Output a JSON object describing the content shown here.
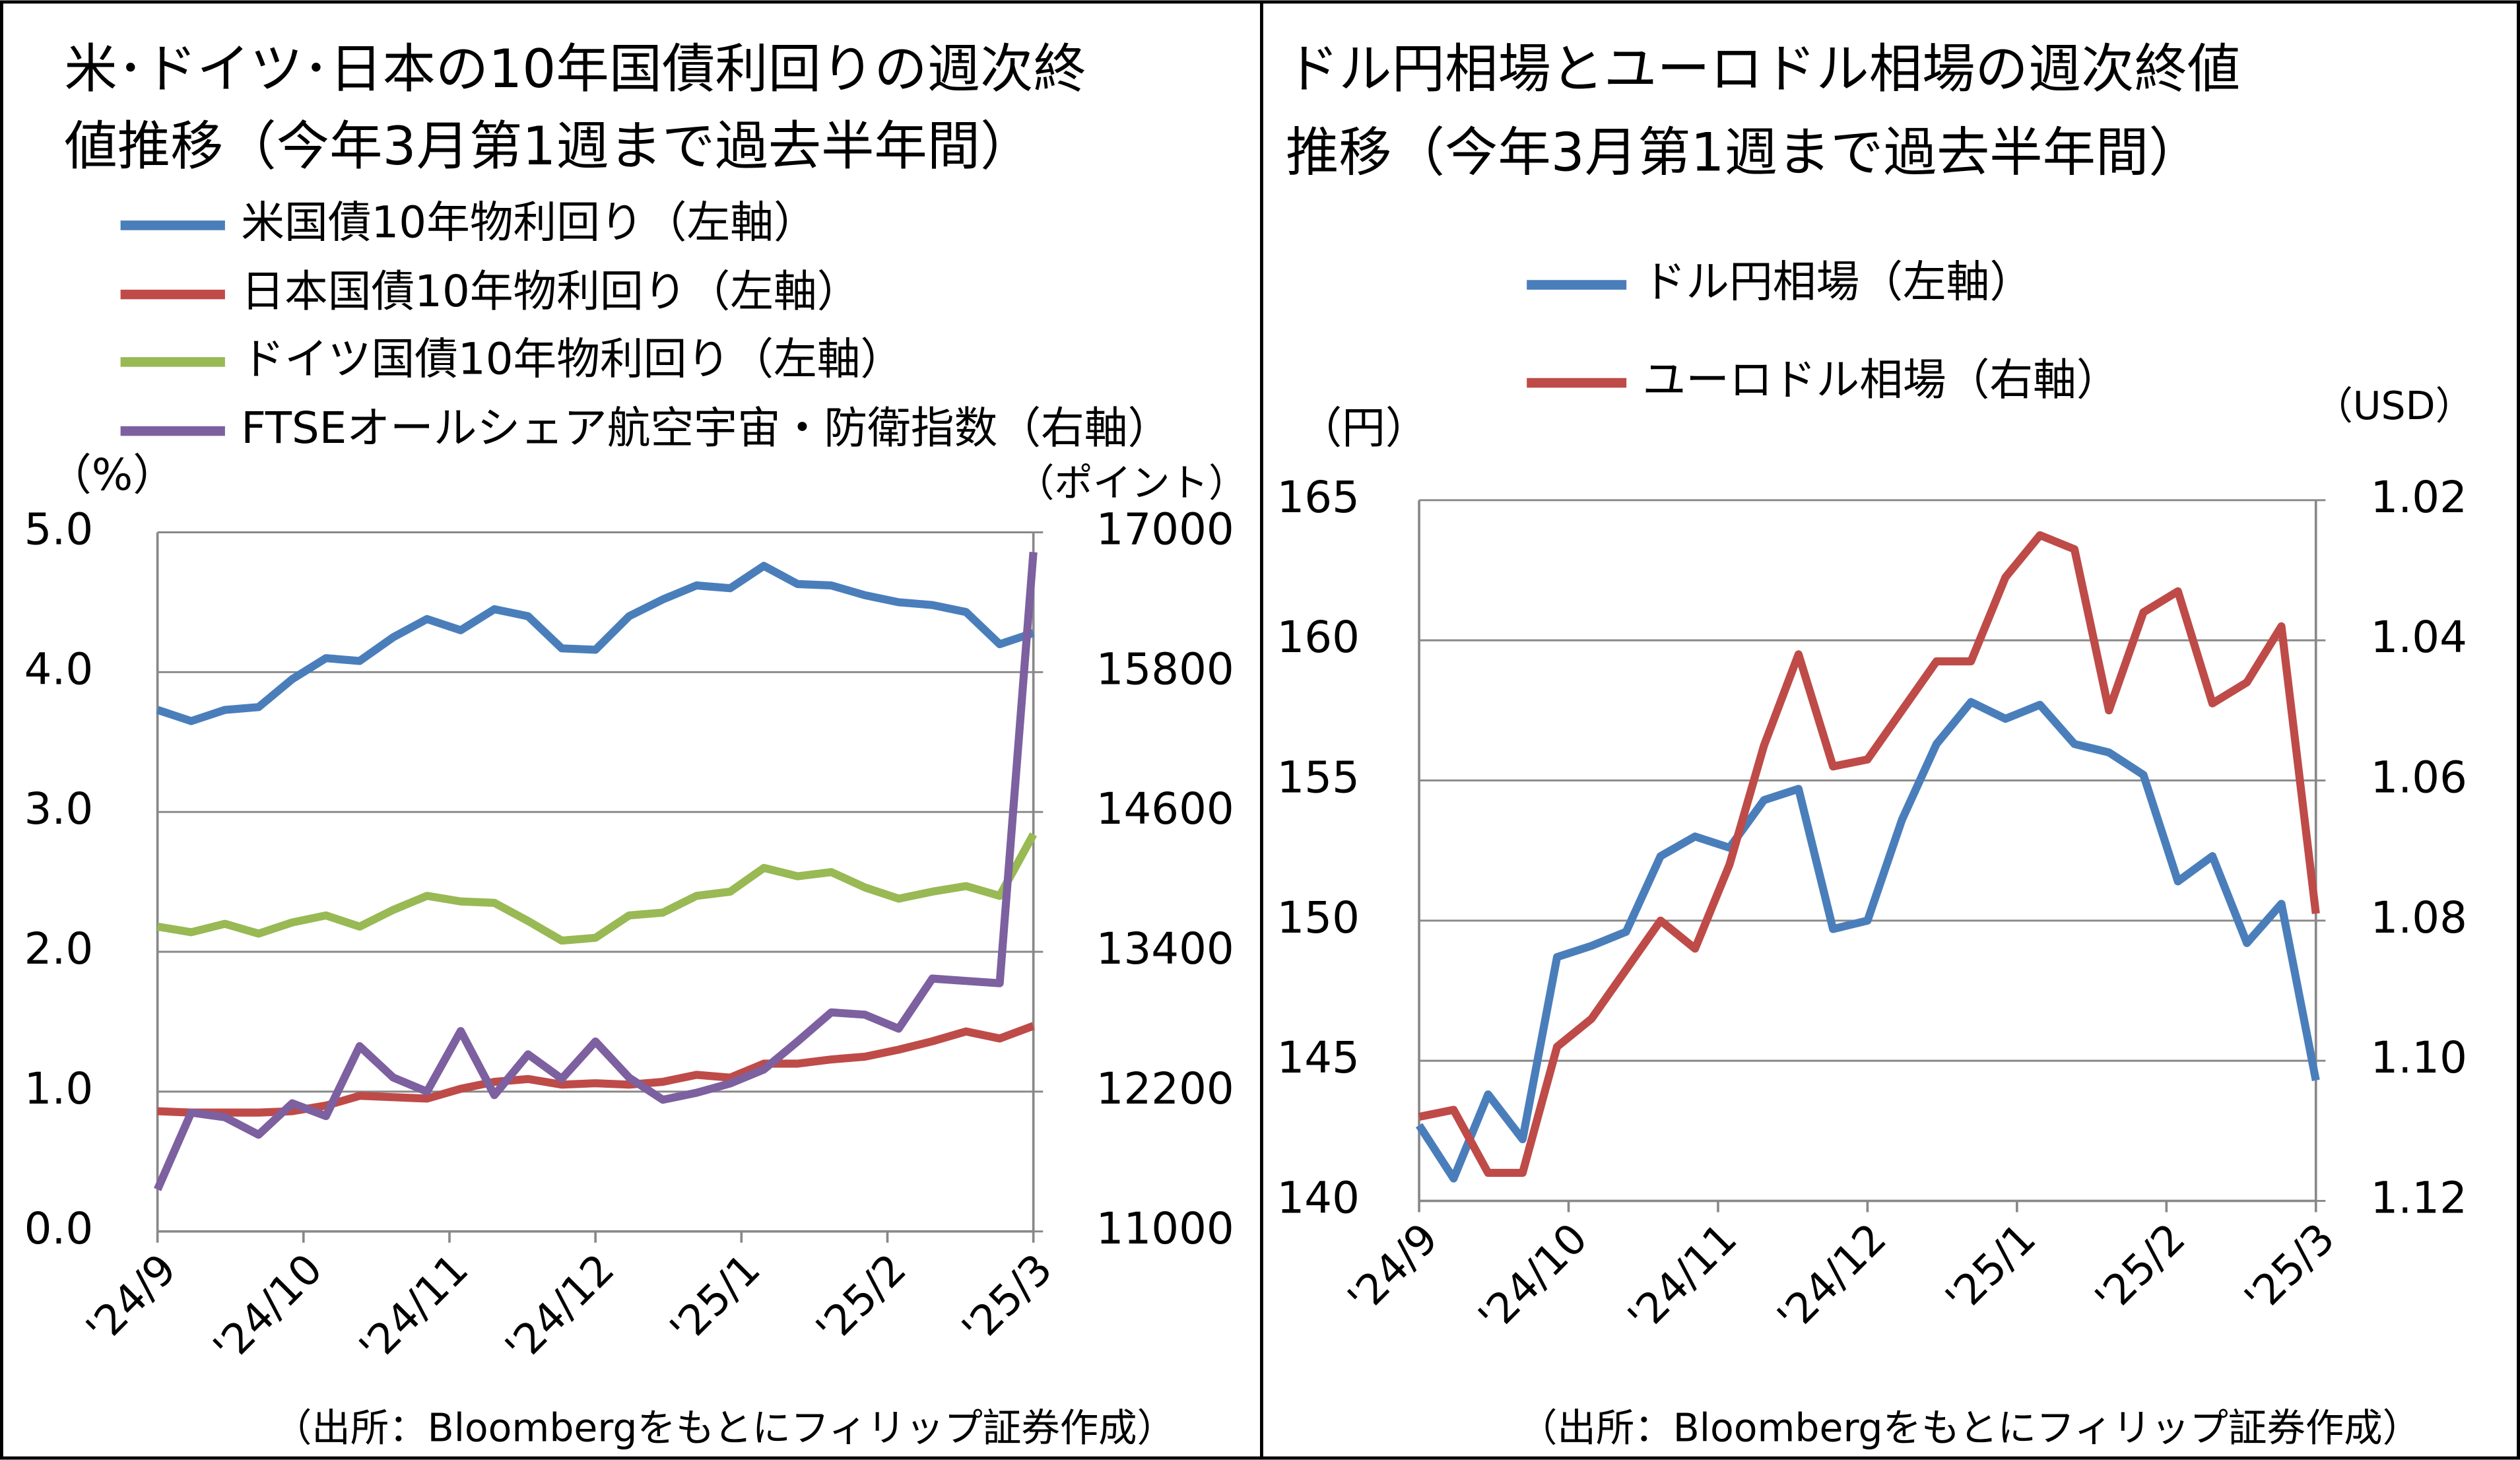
{
  "chart_data": [
    {
      "type": "line",
      "title": [
        "米･ドイツ･日本の10年国債利回りの週次終",
        "値推移（今年3月第1週まで過去半年間）"
      ],
      "y_unit": "（%）",
      "y2_unit": "（ポイント）",
      "source": "（出所：Bloombergをもとにフィリップ証券作成）",
      "x_labels": [
        "'24/9",
        "'24/10",
        "'24/11",
        "'24/12",
        "'25/1",
        "'25/2",
        "'25/3"
      ],
      "ylim": [
        0,
        5
      ],
      "yticks": [
        {
          "value": 0,
          "label": "0.0"
        },
        {
          "value": 1,
          "label": "1.0"
        },
        {
          "value": 2,
          "label": "2.0"
        },
        {
          "value": 3,
          "label": "3.0"
        },
        {
          "value": 4,
          "label": "4.0"
        },
        {
          "value": 5,
          "label": "5.0"
        }
      ],
      "y2lim": [
        11000,
        17000
      ],
      "y2ticks": [
        11000,
        12200,
        13400,
        14600,
        15800,
        17000
      ],
      "grid": true,
      "series": [
        {
          "name": "米国債10年物利回り（左軸）",
          "color": "#4a7ebb",
          "values": [
            3.73,
            3.65,
            3.73,
            3.75,
            3.95,
            4.1,
            4.08,
            4.25,
            4.38,
            4.3,
            4.45,
            4.4,
            4.17,
            4.16,
            4.4,
            4.52,
            4.62,
            4.6,
            4.76,
            4.63,
            4.62,
            4.55,
            4.5,
            4.48,
            4.43,
            4.2,
            4.28
          ]
        },
        {
          "name": "日本国債10年物利回り（左軸）",
          "color": "#be4b48",
          "values": [
            0.86,
            0.85,
            0.85,
            0.85,
            0.86,
            0.9,
            0.97,
            0.96,
            0.95,
            1.02,
            1.07,
            1.09,
            1.05,
            1.06,
            1.05,
            1.07,
            1.12,
            1.1,
            1.2,
            1.2,
            1.23,
            1.25,
            1.3,
            1.36,
            1.43,
            1.38,
            1.47
          ]
        },
        {
          "name": "ドイツ国債10年物利回り（左軸）",
          "color": "#98b954",
          "values": [
            2.18,
            2.14,
            2.2,
            2.13,
            2.21,
            2.26,
            2.18,
            2.3,
            2.4,
            2.36,
            2.35,
            2.22,
            2.08,
            2.1,
            2.26,
            2.28,
            2.4,
            2.43,
            2.6,
            2.54,
            2.57,
            2.46,
            2.38,
            2.43,
            2.47,
            2.4,
            2.84
          ]
        },
        {
          "name": "FTSEオールシェア航空宇宙・防衛指数（右軸）",
          "color": "#7d60a0",
          "axis": "y2",
          "values": [
            11360,
            12020,
            11980,
            11830,
            12100,
            11990,
            12590,
            12320,
            12200,
            12720,
            12170,
            12520,
            12310,
            12630,
            12320,
            12130,
            12190,
            12270,
            12390,
            12630,
            12880,
            12860,
            12740,
            13170,
            13150,
            13130,
            16830
          ]
        }
      ]
    },
    {
      "type": "line",
      "title": [
        "ドル円相場とユーロドル相場の週次終値",
        "推移（今年3月第1週まで過去半年間）"
      ],
      "y_unit": "（円）",
      "y2_unit": "（USD）",
      "source": "（出所：Bloombergをもとにフィリップ証券作成）",
      "x_labels": [
        "'24/9",
        "'24/10",
        "'24/11",
        "'24/12",
        "'25/1",
        "'25/2",
        "'25/3"
      ],
      "ylim": [
        140,
        165
      ],
      "yticks": [
        140,
        145,
        150,
        155,
        160,
        165
      ],
      "y2lim": [
        1.12,
        1.02
      ],
      "y2ticks": [
        1.12,
        {
          "value": 1.1,
          "label": "1.10"
        },
        1.08,
        1.06,
        1.04,
        1.02
      ],
      "grid": true,
      "series": [
        {
          "name": "ドル円相場（左軸）",
          "color": "#4a7ebb",
          "values": [
            142.7,
            140.8,
            143.8,
            142.2,
            148.7,
            149.1,
            149.6,
            152.3,
            153.0,
            152.6,
            154.3,
            154.7,
            149.7,
            150.0,
            153.6,
            156.3,
            157.8,
            157.2,
            157.7,
            156.3,
            156.0,
            155.2,
            151.4,
            152.3,
            149.2,
            150.6,
            144.3
          ]
        },
        {
          "name": "ユーロドル相場（右軸）",
          "color": "#be4b48",
          "axis": "y2",
          "values": [
            1.108,
            1.107,
            1.116,
            1.116,
            1.098,
            1.094,
            1.087,
            1.08,
            1.084,
            1.072,
            1.055,
            1.042,
            1.058,
            1.057,
            1.05,
            1.043,
            1.043,
            1.031,
            1.025,
            1.027,
            1.05,
            1.036,
            1.033,
            1.049,
            1.046,
            1.038,
            1.079
          ]
        }
      ]
    }
  ]
}
